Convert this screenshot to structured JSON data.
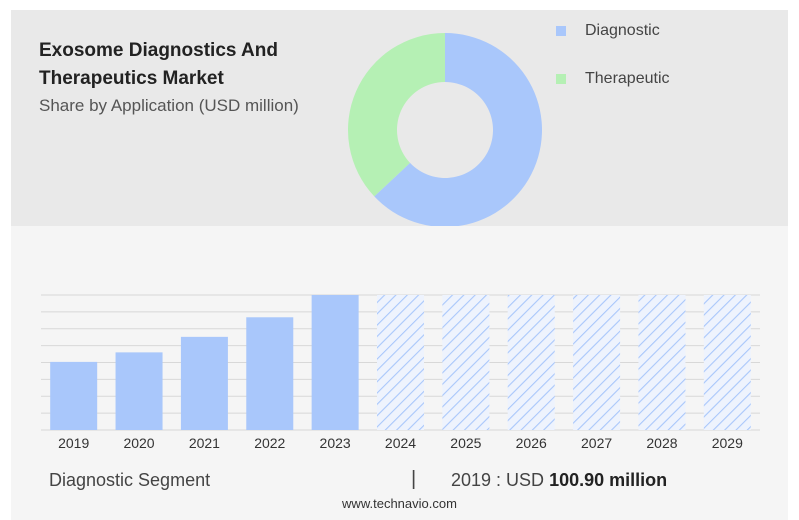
{
  "title": "Exosome Diagnostics And Therapeutics Market",
  "subtitle": "Share by Application (USD million)",
  "colors": {
    "diagnostic": "#a9c7fb",
    "therapeutic": "#b5f0b4",
    "hatch": "#a9c7fb"
  },
  "chart_data": [
    {
      "type": "pie",
      "variant": "donut",
      "labels": [
        "Diagnostic",
        "Therapeutic"
      ],
      "values": [
        63,
        37
      ],
      "legend_position": "right"
    },
    {
      "type": "bar",
      "categories": [
        "2019",
        "2020",
        "2021",
        "2022",
        "2023",
        "2024",
        "2025",
        "2026",
        "2027",
        "2028",
        "2029"
      ],
      "values": [
        100.9,
        115,
        138,
        167,
        200,
        null,
        null,
        null,
        null,
        null,
        null
      ],
      "forecast_categories": [
        "2024",
        "2025",
        "2026",
        "2027",
        "2028",
        "2029"
      ],
      "ylim": [
        0,
        200
      ],
      "grid": true
    }
  ],
  "footer": {
    "segment": "Diagnostic Segment",
    "separator": "|",
    "year": "2019 : USD ",
    "value": "100.90 million",
    "site": "www.technavio.com"
  }
}
